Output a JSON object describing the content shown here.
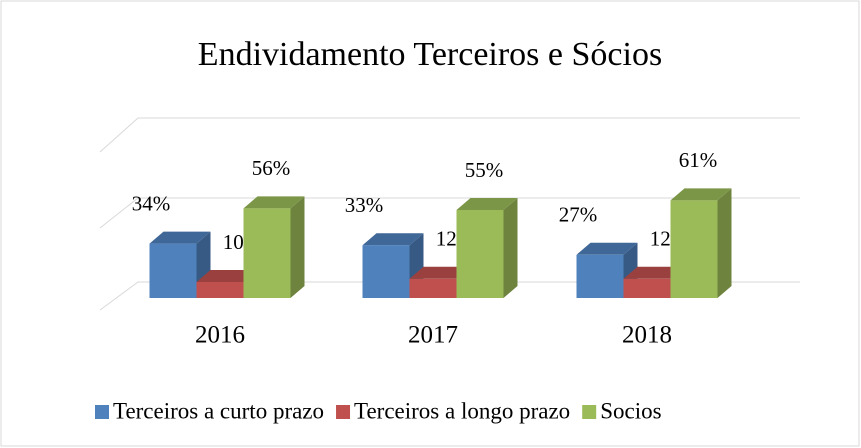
{
  "chart_data": {
    "type": "bar3d",
    "title": "Endividamento Terceiros e Sócios",
    "categories": [
      "2016",
      "2017",
      "2018"
    ],
    "series": [
      {
        "name": "Terceiros a curto prazo",
        "color": "#4f81bd",
        "values": [
          34,
          33,
          27
        ],
        "value_labels": [
          "34%",
          "33%",
          "27%"
        ]
      },
      {
        "name": "Terceiros a longo prazo",
        "color": "#c0504d",
        "values": [
          10,
          12,
          12
        ],
        "value_labels": [
          "10%",
          "12%",
          "12%"
        ]
      },
      {
        "name": "Socios",
        "color": "#9bbb59",
        "values": [
          56,
          55,
          61
        ],
        "value_labels": [
          "56%",
          "55%",
          "61%"
        ]
      }
    ],
    "legend": "bottom"
  }
}
